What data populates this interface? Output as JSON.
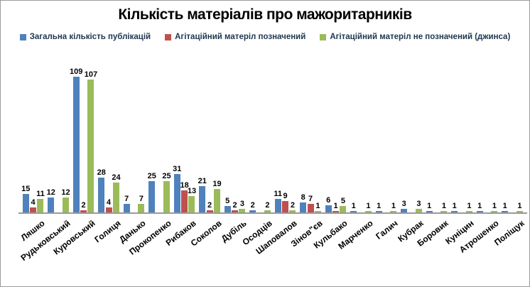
{
  "chart_data": {
    "type": "bar",
    "title": "Кількість матеріалів про мажоритарників",
    "categories": [
      "Ляшко",
      "Рудьковський",
      "Куровський",
      "Голиця",
      "Данько",
      "Прокопенко",
      "Рибаков",
      "Соколов",
      "Дубіль",
      "Осодців",
      "Шаповалов",
      "Зінов\"єв",
      "Кульбако",
      "Марченко",
      "Галич",
      "Кубрак",
      "Боровик",
      "Куніцин",
      "Атрошенко",
      "Поліщук"
    ],
    "series": [
      {
        "name": "Загальна кількість публікацій",
        "color": "#4f81bd",
        "values": [
          15,
          12,
          109,
          28,
          7,
          25,
          31,
          21,
          5,
          2,
          11,
          8,
          6,
          1,
          1,
          3,
          1,
          1,
          1,
          1
        ]
      },
      {
        "name": "Агітаційний матеріл позначений",
        "color": "#c0504d",
        "values": [
          4,
          null,
          2,
          4,
          null,
          null,
          18,
          2,
          2,
          null,
          9,
          7,
          1,
          null,
          null,
          null,
          null,
          null,
          null,
          null
        ]
      },
      {
        "name": "Агітаційний матеріл не позначений (джинса)",
        "color": "#9bbb59",
        "values": [
          11,
          12,
          107,
          24,
          7,
          25,
          13,
          19,
          3,
          2,
          2,
          1,
          5,
          1,
          1,
          3,
          1,
          1,
          1,
          1
        ]
      }
    ],
    "ylim": [
      0,
      115
    ],
    "y_axis_visible": false,
    "grid": false,
    "data_labels": true,
    "legend_position": "top",
    "axis_color": "#9a9a9a"
  }
}
